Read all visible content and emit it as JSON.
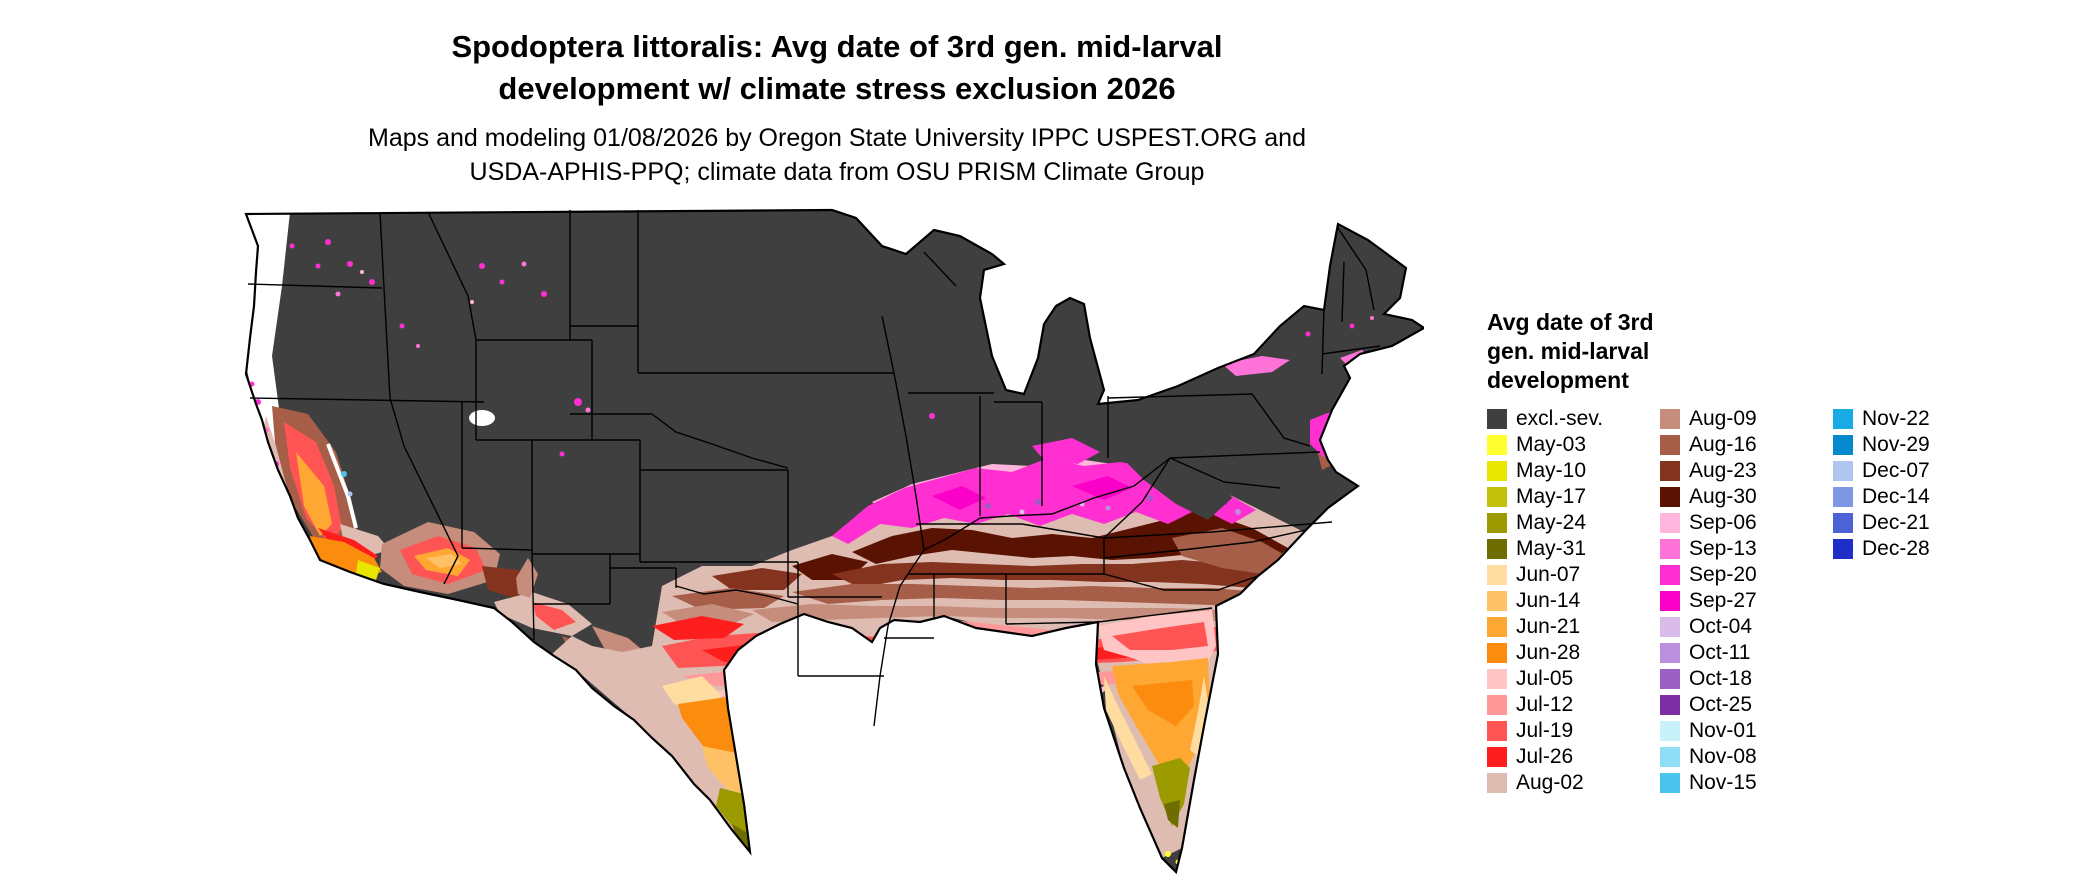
{
  "title": {
    "line1": "Spodoptera littoralis: Avg date of 3rd gen. mid-larval",
    "line2": "development w/ climate stress exclusion 2026"
  },
  "subtitle": {
    "line1": "Maps and modeling 01/08/2026 by Oregon State University IPPC USPEST.ORG and",
    "line2": "USDA-APHIS-PPQ; climate data from OSU PRISM Climate Group"
  },
  "legend": {
    "title_lines": [
      "Avg date of 3rd",
      "gen. mid-larval",
      "development"
    ],
    "columns": [
      [
        {
          "label": "excl.-sev.",
          "key": "excl"
        },
        {
          "label": "May-03",
          "key": "may03"
        },
        {
          "label": "May-10",
          "key": "may10"
        },
        {
          "label": "May-17",
          "key": "may17"
        },
        {
          "label": "May-24",
          "key": "may24"
        },
        {
          "label": "May-31",
          "key": "may31"
        },
        {
          "label": "Jun-07",
          "key": "jun07"
        },
        {
          "label": "Jun-14",
          "key": "jun14"
        },
        {
          "label": "Jun-21",
          "key": "jun21"
        },
        {
          "label": "Jun-28",
          "key": "jun28"
        },
        {
          "label": "Jul-05",
          "key": "jul05"
        },
        {
          "label": "Jul-12",
          "key": "jul12"
        },
        {
          "label": "Jul-19",
          "key": "jul19"
        },
        {
          "label": "Jul-26",
          "key": "jul26"
        },
        {
          "label": "Aug-02",
          "key": "aug02"
        }
      ],
      [
        {
          "label": "Aug-09",
          "key": "aug09"
        },
        {
          "label": "Aug-16",
          "key": "aug16"
        },
        {
          "label": "Aug-23",
          "key": "aug23"
        },
        {
          "label": "Aug-30",
          "key": "aug30"
        },
        {
          "label": "Sep-06",
          "key": "sep06"
        },
        {
          "label": "Sep-13",
          "key": "sep13"
        },
        {
          "label": "Sep-20",
          "key": "sep20"
        },
        {
          "label": "Sep-27",
          "key": "sep27"
        },
        {
          "label": "Oct-04",
          "key": "oct04"
        },
        {
          "label": "Oct-11",
          "key": "oct11"
        },
        {
          "label": "Oct-18",
          "key": "oct18"
        },
        {
          "label": "Oct-25",
          "key": "oct25"
        },
        {
          "label": "Nov-01",
          "key": "nov01"
        },
        {
          "label": "Nov-08",
          "key": "nov08"
        },
        {
          "label": "Nov-15",
          "key": "nov15"
        }
      ],
      [
        {
          "label": "Nov-22",
          "key": "nov22"
        },
        {
          "label": "Nov-29",
          "key": "nov29"
        },
        {
          "label": "Dec-07",
          "key": "dec07"
        },
        {
          "label": "Dec-14",
          "key": "dec14"
        },
        {
          "label": "Dec-21",
          "key": "dec21"
        },
        {
          "label": "Dec-28",
          "key": "dec28"
        }
      ]
    ]
  },
  "palette": {
    "excl": "#3F3F3F",
    "may03": "#FFFF30",
    "may10": "#E8E500",
    "may17": "#C2C20A",
    "may24": "#9B9B00",
    "may31": "#6E6E00",
    "jun07": "#FFDCA0",
    "jun14": "#FFC166",
    "jun21": "#FFA733",
    "jun28": "#FB8C0E",
    "jul05": "#FFC4C4",
    "jul12": "#FF9898",
    "jul19": "#FF5454",
    "jul26": "#FF1E1E",
    "aug02": "#DFBCB2",
    "aug09": "#C78D7C",
    "aug16": "#A65E48",
    "aug23": "#83331E",
    "aug30": "#5A1202",
    "sep06": "#FFB5DC",
    "sep13": "#FF72D8",
    "sep20": "#FF2FD2",
    "sep27": "#FB00C8",
    "oct04": "#D9BCE9",
    "oct11": "#BB8FDB",
    "oct18": "#9C5FC4",
    "oct25": "#7B2FA2",
    "nov01": "#C9F1FA",
    "nov08": "#8EDEF6",
    "nov15": "#4AC3EE",
    "nov22": "#18AAE4",
    "nov29": "#0489CE",
    "dec07": "#AEC6F0",
    "dec14": "#7E97E4",
    "dec21": "#4C63D6",
    "dec28": "#1D2FC8"
  }
}
